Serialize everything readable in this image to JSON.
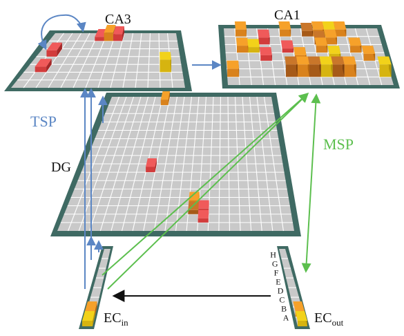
{
  "labels": {
    "ca3": "CA3",
    "ca1": "CA1",
    "dg": "DG",
    "tsp": "TSP",
    "msp": "MSP",
    "ec_in_main": "EC",
    "ec_in_sub": "in",
    "ec_out_main": "EC",
    "ec_out_sub": "out",
    "ec_letters": [
      "H",
      "G",
      "F",
      "E",
      "D",
      "C",
      "B",
      "A"
    ]
  },
  "colors": {
    "tsp": "#5b86c4",
    "msp": "#5cbf4e",
    "ec_arrow": "#111111",
    "frame": "#3f6a63",
    "grid_fill": "#c9c9c9",
    "grid_line": "#ffffff"
  }
}
